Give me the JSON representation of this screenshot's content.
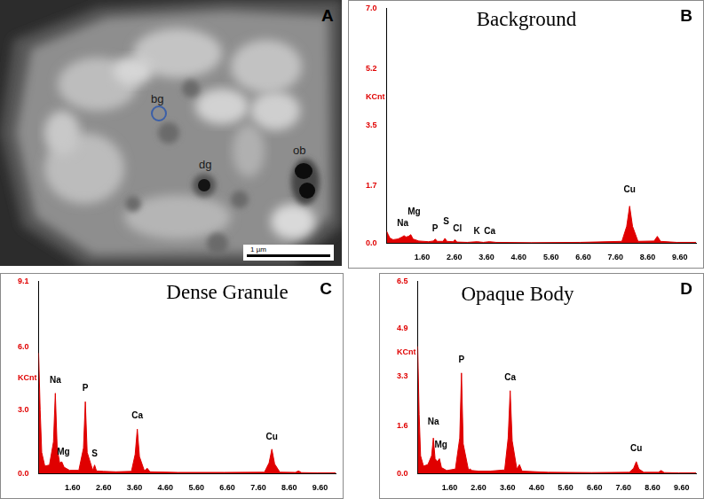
{
  "image_panel": {
    "letter": "A",
    "labels": [
      "bg",
      "dg",
      "ob"
    ],
    "scale_bar": "1 µm"
  },
  "chart_data": [
    {
      "type": "line",
      "letter": "B",
      "title": "Background",
      "y_label": "KCnt",
      "color": "#e00000",
      "grid": false,
      "xlim": [
        0.5,
        10.1
      ],
      "xticks": [
        {
          "value": 1.6,
          "label": "1.60"
        },
        {
          "value": 2.6,
          "label": "2.60"
        },
        {
          "value": 3.6,
          "label": "3.60"
        },
        {
          "value": 4.6,
          "label": "4.60"
        },
        {
          "value": 5.6,
          "label": "5.60"
        },
        {
          "value": 6.6,
          "label": "6.60"
        },
        {
          "value": 7.6,
          "label": "7.60"
        },
        {
          "value": 8.6,
          "label": "8.60"
        },
        {
          "value": 9.6,
          "label": "9.60"
        }
      ],
      "ylim": [
        0,
        7
      ],
      "yticks": [
        {
          "value": 0,
          "label": "0.0"
        },
        1.7,
        3.5,
        5.2,
        {
          "value": 7,
          "label": "7.0"
        }
      ],
      "x": [
        0.5,
        0.55,
        0.6,
        0.7,
        0.85,
        0.98,
        1.04,
        1.1,
        1.18,
        1.25,
        1.32,
        1.5,
        1.8,
        1.95,
        2.01,
        2.07,
        2.25,
        2.31,
        2.37,
        2.56,
        2.62,
        2.68,
        3.0,
        3.31,
        3.5,
        3.69,
        3.9,
        5.0,
        6.5,
        7.8,
        7.95,
        8.04,
        8.13,
        8.3,
        8.8,
        8.9,
        9.0,
        9.5,
        10.1
      ],
      "values": [
        0.35,
        0.25,
        0.15,
        0.1,
        0.12,
        0.18,
        0.22,
        0.18,
        0.2,
        0.25,
        0.12,
        0.06,
        0.04,
        0.06,
        0.12,
        0.05,
        0.05,
        0.14,
        0.05,
        0.04,
        0.1,
        0.03,
        0.02,
        0.04,
        0.02,
        0.04,
        0.02,
        0.01,
        0.02,
        0.05,
        0.5,
        1.1,
        0.5,
        0.05,
        0.06,
        0.2,
        0.05,
        0.02,
        0.02
      ],
      "annotations": [
        {
          "text": "Na",
          "x": 1.0,
          "y": 0.45
        },
        {
          "text": "Mg",
          "x": 1.35,
          "y": 0.8
        },
        {
          "text": "P",
          "x": 2.0,
          "y": 0.3
        },
        {
          "text": "S",
          "x": 2.35,
          "y": 0.5
        },
        {
          "text": "Cl",
          "x": 2.7,
          "y": 0.3
        },
        {
          "text": "K",
          "x": 3.3,
          "y": 0.2
        },
        {
          "text": "Ca",
          "x": 3.7,
          "y": 0.2
        },
        {
          "text": "Cu",
          "x": 8.04,
          "y": 1.45
        }
      ]
    },
    {
      "type": "line",
      "letter": "C",
      "title": "Dense Granule",
      "y_label": "KCnt",
      "color": "#e00000",
      "grid": false,
      "xlim": [
        0.5,
        10.1
      ],
      "xticks": [
        {
          "value": 1.6,
          "label": "1.60"
        },
        {
          "value": 2.6,
          "label": "2.60"
        },
        {
          "value": 3.6,
          "label": "3.60"
        },
        {
          "value": 4.6,
          "label": "4.60"
        },
        {
          "value": 5.6,
          "label": "5.60"
        },
        {
          "value": 6.6,
          "label": "6.60"
        },
        {
          "value": 7.6,
          "label": "7.60"
        },
        {
          "value": 8.6,
          "label": "8.60"
        },
        {
          "value": 9.6,
          "label": "9.60"
        }
      ],
      "ylim": [
        0,
        9.1
      ],
      "yticks": [
        {
          "value": 0,
          "label": "0.0"
        },
        {
          "value": 3,
          "label": "3.0"
        },
        {
          "value": 6,
          "label": "6.0"
        },
        9.1
      ],
      "x": [
        0.5,
        0.55,
        0.6,
        0.7,
        0.85,
        0.98,
        1.04,
        1.1,
        1.18,
        1.25,
        1.32,
        1.5,
        1.8,
        1.95,
        2.01,
        2.07,
        2.25,
        2.31,
        2.37,
        2.6,
        3.0,
        3.5,
        3.62,
        3.69,
        3.76,
        3.92,
        4.01,
        4.1,
        5.0,
        6.5,
        7.8,
        7.95,
        8.04,
        8.13,
        8.3,
        8.8,
        8.9,
        9.0,
        9.5,
        10.1
      ],
      "values": [
        5.7,
        3.0,
        1.0,
        0.35,
        0.4,
        1.5,
        3.8,
        1.2,
        0.5,
        0.55,
        0.3,
        0.15,
        0.15,
        1.2,
        3.4,
        1.0,
        0.15,
        0.4,
        0.12,
        0.1,
        0.08,
        0.1,
        0.9,
        2.1,
        0.8,
        0.12,
        0.25,
        0.08,
        0.05,
        0.05,
        0.06,
        0.5,
        1.15,
        0.45,
        0.06,
        0.05,
        0.12,
        0.04,
        0.03,
        0.03
      ],
      "annotations": [
        {
          "text": "Na",
          "x": 1.04,
          "y": 4.2
        },
        {
          "text": "Mg",
          "x": 1.3,
          "y": 0.8
        },
        {
          "text": "P",
          "x": 2.01,
          "y": 3.8
        },
        {
          "text": "S",
          "x": 2.31,
          "y": 0.7
        },
        {
          "text": "Ca",
          "x": 3.69,
          "y": 2.5
        },
        {
          "text": "Cu",
          "x": 8.04,
          "y": 1.5
        }
      ]
    },
    {
      "type": "line",
      "letter": "D",
      "title": "Opaque Body",
      "y_label": "KCnt",
      "color": "#e00000",
      "grid": false,
      "xlim": [
        0.5,
        10.1
      ],
      "xticks": [
        {
          "value": 1.6,
          "label": "1.60"
        },
        {
          "value": 2.6,
          "label": "2.60"
        },
        {
          "value": 3.6,
          "label": "3.60"
        },
        {
          "value": 4.6,
          "label": "4.60"
        },
        {
          "value": 5.6,
          "label": "5.60"
        },
        {
          "value": 6.6,
          "label": "6.60"
        },
        {
          "value": 7.6,
          "label": "7.60"
        },
        {
          "value": 8.6,
          "label": "8.60"
        },
        {
          "value": 9.6,
          "label": "9.60"
        }
      ],
      "ylim": [
        0,
        6.5
      ],
      "yticks": [
        {
          "value": 0,
          "label": "0.0"
        },
        1.6,
        3.3,
        4.9,
        6.5
      ],
      "x": [
        0.5,
        0.55,
        0.6,
        0.7,
        0.85,
        0.98,
        1.04,
        1.1,
        1.18,
        1.25,
        1.32,
        1.5,
        1.8,
        1.95,
        2.01,
        2.07,
        2.25,
        2.31,
        2.37,
        2.6,
        3.0,
        3.5,
        3.62,
        3.69,
        3.76,
        3.92,
        4.01,
        4.1,
        5.0,
        6.5,
        7.8,
        7.95,
        8.04,
        8.13,
        8.3,
        8.8,
        8.9,
        9.0,
        9.5,
        10.1
      ],
      "values": [
        4.3,
        2.0,
        0.6,
        0.25,
        0.3,
        0.6,
        1.2,
        0.5,
        0.4,
        0.5,
        0.2,
        0.1,
        0.15,
        1.2,
        3.4,
        1.0,
        0.12,
        0.15,
        0.1,
        0.08,
        0.08,
        0.12,
        1.2,
        2.8,
        1.1,
        0.15,
        0.3,
        0.08,
        0.04,
        0.03,
        0.04,
        0.18,
        0.4,
        0.15,
        0.04,
        0.04,
        0.1,
        0.03,
        0.02,
        0.02
      ],
      "annotations": [
        {
          "text": "Na",
          "x": 1.04,
          "y": 1.6
        },
        {
          "text": "Mg",
          "x": 1.3,
          "y": 0.8
        },
        {
          "text": "P",
          "x": 2.01,
          "y": 3.7
        },
        {
          "text": "Ca",
          "x": 3.69,
          "y": 3.1
        },
        {
          "text": "Cu",
          "x": 8.04,
          "y": 0.7
        }
      ]
    }
  ]
}
